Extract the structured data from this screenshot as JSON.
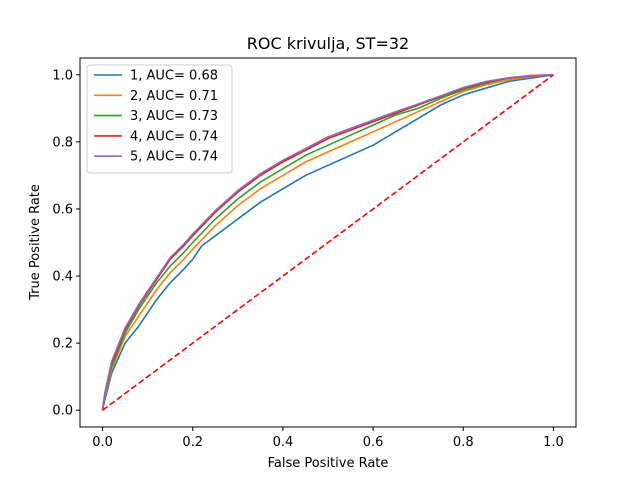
{
  "chart_data": {
    "type": "line",
    "title": "ROC krivulja, ST=32",
    "xlabel": "False Positive Rate",
    "ylabel": "True Positive Rate",
    "xlim": [
      -0.05,
      1.05
    ],
    "ylim": [
      -0.05,
      1.05
    ],
    "xticks": [
      "0.0",
      "0.2",
      "0.4",
      "0.6",
      "0.8",
      "1.0"
    ],
    "yticks": [
      "0.0",
      "0.2",
      "0.4",
      "0.6",
      "0.8",
      "1.0"
    ],
    "legend_position": "top-left",
    "grid": false,
    "series": [
      {
        "name": "1, AUC= 0.68",
        "color": "#1f77b4",
        "x": [
          0,
          0.005,
          0.02,
          0.05,
          0.08,
          0.1,
          0.12,
          0.15,
          0.18,
          0.2,
          0.22,
          0.25,
          0.3,
          0.35,
          0.4,
          0.45,
          0.5,
          0.55,
          0.6,
          0.65,
          0.7,
          0.75,
          0.8,
          0.85,
          0.9,
          0.95,
          1.0
        ],
        "y": [
          0,
          0.03,
          0.11,
          0.2,
          0.25,
          0.29,
          0.33,
          0.38,
          0.42,
          0.45,
          0.49,
          0.52,
          0.57,
          0.62,
          0.66,
          0.7,
          0.73,
          0.76,
          0.79,
          0.83,
          0.87,
          0.91,
          0.94,
          0.96,
          0.98,
          0.99,
          1.0
        ]
      },
      {
        "name": "2, AUC= 0.71",
        "color": "#ff7f0e",
        "x": [
          0,
          0.005,
          0.02,
          0.05,
          0.08,
          0.1,
          0.12,
          0.15,
          0.18,
          0.2,
          0.25,
          0.3,
          0.35,
          0.4,
          0.45,
          0.5,
          0.55,
          0.6,
          0.65,
          0.7,
          0.75,
          0.8,
          0.85,
          0.9,
          0.95,
          1.0
        ],
        "y": [
          0,
          0.04,
          0.12,
          0.22,
          0.28,
          0.32,
          0.36,
          0.41,
          0.45,
          0.48,
          0.55,
          0.61,
          0.66,
          0.7,
          0.74,
          0.77,
          0.8,
          0.83,
          0.86,
          0.89,
          0.92,
          0.95,
          0.97,
          0.985,
          0.995,
          1.0
        ]
      },
      {
        "name": "3, AUC= 0.73",
        "color": "#2ca02c",
        "x": [
          0,
          0.005,
          0.02,
          0.05,
          0.08,
          0.1,
          0.12,
          0.15,
          0.18,
          0.2,
          0.25,
          0.3,
          0.35,
          0.4,
          0.45,
          0.5,
          0.55,
          0.6,
          0.65,
          0.7,
          0.75,
          0.8,
          0.85,
          0.9,
          0.95,
          1.0
        ],
        "y": [
          0,
          0.045,
          0.13,
          0.23,
          0.3,
          0.34,
          0.38,
          0.43,
          0.47,
          0.5,
          0.57,
          0.63,
          0.68,
          0.72,
          0.76,
          0.79,
          0.82,
          0.85,
          0.88,
          0.9,
          0.93,
          0.955,
          0.975,
          0.99,
          0.997,
          1.0
        ]
      },
      {
        "name": "4, AUC= 0.74",
        "color": "#d62728",
        "x": [
          0,
          0.005,
          0.02,
          0.05,
          0.08,
          0.1,
          0.12,
          0.15,
          0.18,
          0.2,
          0.25,
          0.3,
          0.35,
          0.4,
          0.45,
          0.5,
          0.55,
          0.6,
          0.65,
          0.7,
          0.75,
          0.8,
          0.85,
          0.9,
          0.95,
          1.0
        ],
        "y": [
          0,
          0.05,
          0.14,
          0.24,
          0.31,
          0.35,
          0.39,
          0.45,
          0.49,
          0.52,
          0.59,
          0.65,
          0.7,
          0.74,
          0.775,
          0.81,
          0.835,
          0.86,
          0.885,
          0.91,
          0.935,
          0.96,
          0.978,
          0.99,
          0.997,
          1.0
        ]
      },
      {
        "name": "5, AUC= 0.74",
        "color": "#9467bd",
        "x": [
          0,
          0.005,
          0.02,
          0.05,
          0.08,
          0.1,
          0.12,
          0.15,
          0.18,
          0.2,
          0.25,
          0.3,
          0.35,
          0.4,
          0.45,
          0.5,
          0.55,
          0.6,
          0.65,
          0.7,
          0.75,
          0.8,
          0.85,
          0.9,
          0.95,
          1.0
        ],
        "y": [
          0,
          0.05,
          0.145,
          0.245,
          0.315,
          0.355,
          0.395,
          0.455,
          0.495,
          0.525,
          0.595,
          0.655,
          0.705,
          0.745,
          0.78,
          0.815,
          0.84,
          0.865,
          0.89,
          0.913,
          0.937,
          0.962,
          0.98,
          0.991,
          0.998,
          1.0
        ]
      }
    ],
    "reference_line": {
      "style": "dashed",
      "color": "#ff0000",
      "x": [
        0,
        1
      ],
      "y": [
        0,
        1
      ]
    }
  }
}
